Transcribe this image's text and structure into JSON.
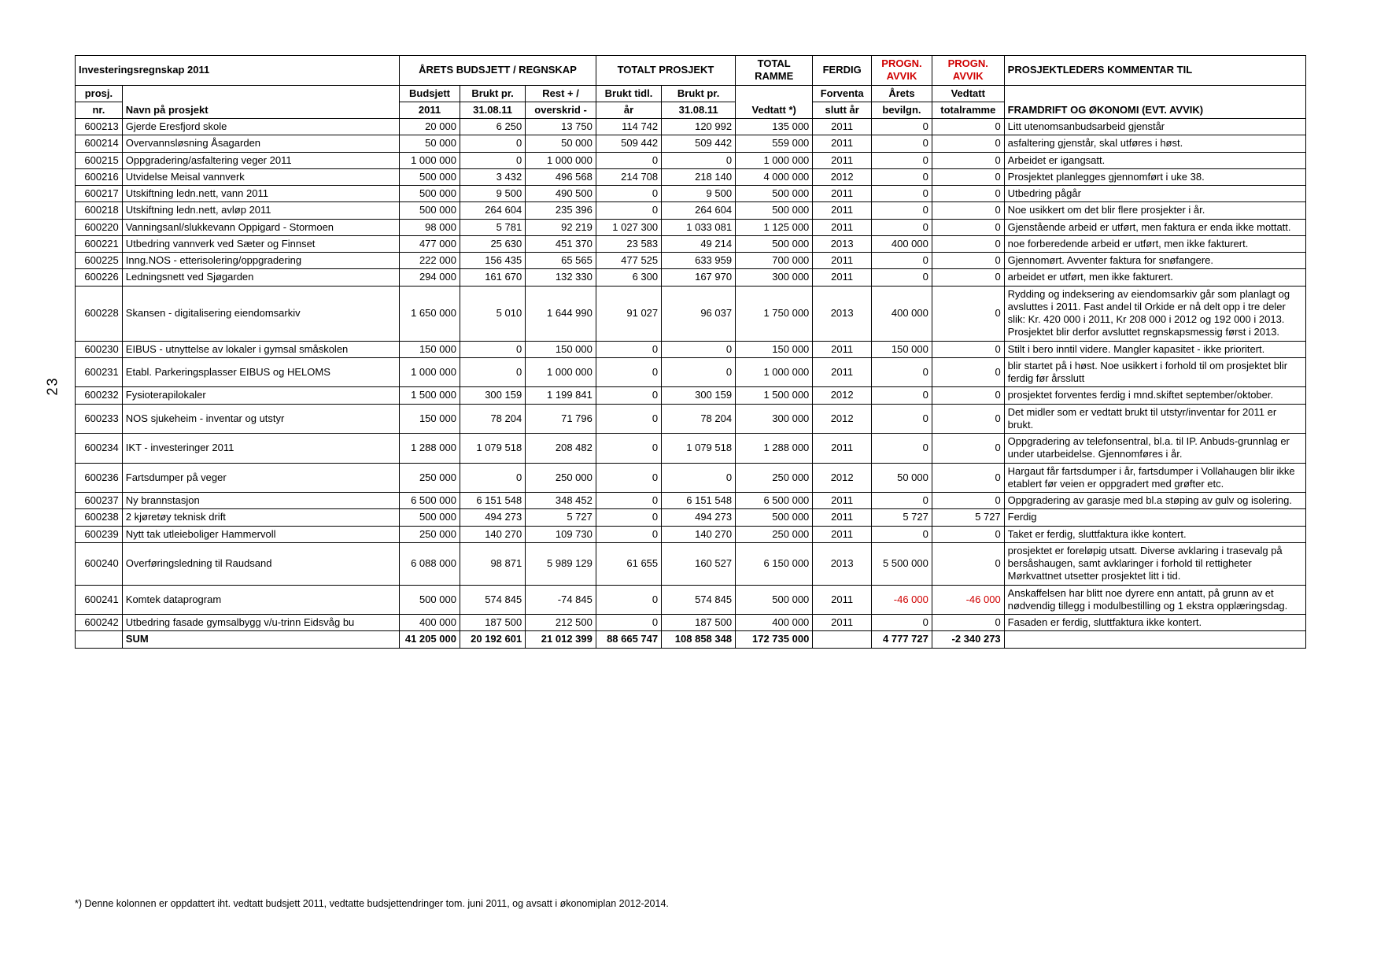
{
  "page_number": "23",
  "title": "Investeringsregnskap 2011",
  "header_groups": {
    "g1": "ÅRETS BUDSJETT / REGNSKAP",
    "g2": "TOTALT PROSJEKT",
    "g3": "TOTAL RAMME",
    "g4": "FERDIG",
    "g5a": "PROGN. AVVIK",
    "g5b": "PROGN. AVVIK",
    "g6": "PROSJEKTLEDERS KOMMENTAR TIL"
  },
  "header_cols": {
    "c0a": "prosj.",
    "c0b": "nr.",
    "c1": "Navn på prosjekt",
    "c2a": "Budsjett",
    "c2b": "2011",
    "c3a": "Brukt pr.",
    "c3b": "31.08.11",
    "c4a": "Rest + /",
    "c4b": "overskrid -",
    "c5a": "Brukt tidl.",
    "c5b": "år",
    "c6a": "Brukt pr.",
    "c6b": "31.08.11",
    "c7": "Vedtatt  *)",
    "c8a": "Forventa",
    "c8b": "slutt år",
    "c9a": "Årets",
    "c9b": "bevilgn.",
    "c10a": "Vedtatt",
    "c10b": "totalramme",
    "c11": "FRAMDRIFT OG ØKONOMI (EVT. AVVIK)"
  },
  "footnote": "*) Denne kolonnen er oppdattert iht. vedtatt budsjett 2011, vedtatte budsjettendringer tom. juni 2011, og avsatt i økonomiplan 2012-2014.",
  "sum_label": "SUM",
  "rows": [
    {
      "nr": "600213",
      "navn": "Gjerde Eresfjord skole",
      "b2011": "20 000",
      "brukt": "6 250",
      "rest": "13 750",
      "tidl": "114 742",
      "bruktpr": "120 992",
      "vedtatt": "135 000",
      "slutt": "2011",
      "avvikA": "0",
      "avvikB": "0",
      "komm": "Litt utenomsanbudsarbeid gjenstår"
    },
    {
      "nr": "600214",
      "navn": "Overvannsløsning Åsagarden",
      "b2011": "50 000",
      "brukt": "0",
      "rest": "50 000",
      "tidl": "509 442",
      "bruktpr": "509 442",
      "vedtatt": "559 000",
      "slutt": "2011",
      "avvikA": "0",
      "avvikB": "0",
      "komm": "asfaltering gjenstår, skal utføres i høst."
    },
    {
      "nr": "600215",
      "navn": "Oppgradering/asfaltering veger 2011",
      "b2011": "1 000 000",
      "brukt": "0",
      "rest": "1 000 000",
      "tidl": "0",
      "bruktpr": "0",
      "vedtatt": "1 000 000",
      "slutt": "2011",
      "avvikA": "0",
      "avvikB": "0",
      "komm": "Arbeidet er igangsatt."
    },
    {
      "nr": "600216",
      "navn": "Utvidelse Meisal vannverk",
      "b2011": "500 000",
      "brukt": "3 432",
      "rest": "496 568",
      "tidl": "214 708",
      "bruktpr": "218 140",
      "vedtatt": "4 000 000",
      "slutt": "2012",
      "avvikA": "0",
      "avvikB": "0",
      "komm": "Prosjektet planlegges gjennomført i uke 38."
    },
    {
      "nr": "600217",
      "navn": "Utskiftning ledn.nett, vann 2011",
      "b2011": "500 000",
      "brukt": "9 500",
      "rest": "490 500",
      "tidl": "0",
      "bruktpr": "9 500",
      "vedtatt": "500 000",
      "slutt": "2011",
      "avvikA": "0",
      "avvikB": "0",
      "komm": "Utbedring pågår"
    },
    {
      "nr": "600218",
      "navn": "Utskiftning ledn.nett, avløp 2011",
      "b2011": "500 000",
      "brukt": "264 604",
      "rest": "235 396",
      "tidl": "0",
      "bruktpr": "264 604",
      "vedtatt": "500 000",
      "slutt": "2011",
      "avvikA": "0",
      "avvikB": "0",
      "komm": "Noe usikkert om det blir flere prosjekter i år."
    },
    {
      "nr": "600220",
      "navn": "Vanningsanl/slukkevann Oppigard - Stormoen",
      "b2011": "98 000",
      "brukt": "5 781",
      "rest": "92 219",
      "tidl": "1 027 300",
      "bruktpr": "1 033 081",
      "vedtatt": "1 125 000",
      "slutt": "2011",
      "avvikA": "0",
      "avvikB": "0",
      "komm": "Gjenstående arbeid er utført, men faktura er enda ikke mottatt."
    },
    {
      "nr": "600221",
      "navn": "Utbedring vannverk ved Sæter og Finnset",
      "b2011": "477 000",
      "brukt": "25 630",
      "rest": "451 370",
      "tidl": "23 583",
      "bruktpr": "49 214",
      "vedtatt": "500 000",
      "slutt": "2013",
      "avvikA": "400 000",
      "avvikB": "0",
      "komm": "noe forberedende arbeid er utført, men ikke fakturert."
    },
    {
      "nr": "600225",
      "navn": "Inng.NOS - etterisolering/oppgradering",
      "b2011": "222 000",
      "brukt": "156 435",
      "rest": "65 565",
      "tidl": "477 525",
      "bruktpr": "633 959",
      "vedtatt": "700 000",
      "slutt": "2011",
      "avvikA": "0",
      "avvikB": "0",
      "komm": "Gjennomørt. Avventer faktura for snøfangere."
    },
    {
      "nr": "600226",
      "navn": "Ledningsnett ved Sjøgarden",
      "b2011": "294 000",
      "brukt": "161 670",
      "rest": "132 330",
      "tidl": "6 300",
      "bruktpr": "167 970",
      "vedtatt": "300 000",
      "slutt": "2011",
      "avvikA": "0",
      "avvikB": "0",
      "komm": "arbeidet er utført, men ikke fakturert."
    },
    {
      "nr": "600228",
      "navn": "Skansen - digitalisering eiendomsarkiv",
      "b2011": "1 650 000",
      "brukt": "5 010",
      "rest": "1 644 990",
      "tidl": "91 027",
      "bruktpr": "96 037",
      "vedtatt": "1 750 000",
      "slutt": "2013",
      "avvikA": "400 000",
      "avvikB": "0",
      "komm": "Rydding og indeksering av eiendomsarkiv går som planlagt og avsluttes i 2011. Fast andel til Orkide er nå delt opp i tre deler slik: Kr. 420 000 i 2011, Kr 208 000 i 2012 og 192 000 i 2013. Prosjektet blir derfor avsluttet regnskapsmessig først i 2013."
    },
    {
      "nr": "600230",
      "navn": "EIBUS - utnyttelse av lokaler i gymsal småskolen",
      "b2011": "150 000",
      "brukt": "0",
      "rest": "150 000",
      "tidl": "0",
      "bruktpr": "0",
      "vedtatt": "150 000",
      "slutt": "2011",
      "avvikA": "150 000",
      "avvikB": "0",
      "komm": "Stilt i bero inntil videre. Mangler kapasitet - ikke prioritert."
    },
    {
      "nr": "600231",
      "navn": "Etabl. Parkeringsplasser EIBUS og HELOMS",
      "b2011": "1 000 000",
      "brukt": "0",
      "rest": "1 000 000",
      "tidl": "0",
      "bruktpr": "0",
      "vedtatt": "1 000 000",
      "slutt": "2011",
      "avvikA": "0",
      "avvikB": "0",
      "komm": "blir startet på i høst. Noe usikkert i forhold til om prosjektet blir ferdig før årsslutt"
    },
    {
      "nr": "600232",
      "navn": "Fysioterapilokaler",
      "b2011": "1 500 000",
      "brukt": "300 159",
      "rest": "1 199 841",
      "tidl": "0",
      "bruktpr": "300 159",
      "vedtatt": "1 500 000",
      "slutt": "2012",
      "avvikA": "0",
      "avvikB": "0",
      "komm": "prosjektet forventes ferdig i mnd.skiftet september/oktober."
    },
    {
      "nr": "600233",
      "navn": "NOS sjukeheim - inventar og utstyr",
      "b2011": "150 000",
      "brukt": "78 204",
      "rest": "71 796",
      "tidl": "0",
      "bruktpr": "78 204",
      "vedtatt": "300 000",
      "slutt": "2012",
      "avvikA": "0",
      "avvikB": "0",
      "komm": "Det midler som er vedtatt brukt  til utstyr/inventar for 2011 er  brukt."
    },
    {
      "nr": "600234",
      "navn": "IKT - investeringer 2011",
      "b2011": "1 288 000",
      "brukt": "1 079 518",
      "rest": "208 482",
      "tidl": "0",
      "bruktpr": "1 079 518",
      "vedtatt": "1 288 000",
      "slutt": "2011",
      "avvikA": "0",
      "avvikB": "0",
      "komm": "Oppgradering av telefonsentral, bl.a. til IP. Anbuds-grunnlag er under utarbeidelse. Gjennomføres i år."
    },
    {
      "nr": "600236",
      "navn": "Fartsdumper på veger",
      "b2011": "250 000",
      "brukt": "0",
      "rest": "250 000",
      "tidl": "0",
      "bruktpr": "0",
      "vedtatt": "250 000",
      "slutt": "2012",
      "avvikA": "50 000",
      "avvikB": "0",
      "komm": "Hargaut får fartsdumper i år, fartsdumper i Vollahaugen blir ikke etablert før veien er oppgradert med grøfter etc."
    },
    {
      "nr": "600237",
      "navn": "Ny brannstasjon",
      "b2011": "6 500 000",
      "brukt": "6 151 548",
      "rest": "348 452",
      "tidl": "0",
      "bruktpr": "6 151 548",
      "vedtatt": "6 500 000",
      "slutt": "2011",
      "avvikA": "0",
      "avvikB": "0",
      "komm": "Oppgradering av garasje med bl.a støping av gulv og isolering."
    },
    {
      "nr": "600238",
      "navn": "2 kjøretøy teknisk drift",
      "b2011": "500 000",
      "brukt": "494 273",
      "rest": "5 727",
      "tidl": "0",
      "bruktpr": "494 273",
      "vedtatt": "500 000",
      "slutt": "2011",
      "avvikA": "5 727",
      "avvikB": "5 727",
      "komm": "Ferdig"
    },
    {
      "nr": "600239",
      "navn": "Nytt tak utleieboliger Hammervoll",
      "b2011": "250 000",
      "brukt": "140 270",
      "rest": "109 730",
      "tidl": "0",
      "bruktpr": "140 270",
      "vedtatt": "250 000",
      "slutt": "2011",
      "avvikA": "0",
      "avvikB": "0",
      "komm": "Taket er ferdig, sluttfaktura ikke kontert."
    },
    {
      "nr": "600240",
      "navn": "Overføringsledning til Raudsand",
      "b2011": "6 088 000",
      "brukt": "98 871",
      "rest": "5 989 129",
      "tidl": "61 655",
      "bruktpr": "160 527",
      "vedtatt": "6 150 000",
      "slutt": "2013",
      "avvikA": "5 500 000",
      "avvikB": "0",
      "komm": "prosjektet er foreløpig utsatt. Diverse avklaring i trasevalg på bersåshaugen, samt avklaringer i forhold til rettigheter Mørkvattnet utsetter prosjektet litt i tid."
    },
    {
      "nr": "600241",
      "navn": "Komtek dataprogram",
      "b2011": "500 000",
      "brukt": "574 845",
      "rest": "-74 845",
      "tidl": "0",
      "bruktpr": "574 845",
      "vedtatt": "500 000",
      "slutt": "2011",
      "avvikA": "-46 000",
      "avvikB": "-46 000",
      "komm": "Anskaffelsen har blitt noe dyrere enn antatt, på grunn av et nødvendig tillegg i modulbestilling og 1 ekstra opplæringsdag.",
      "redA": true,
      "redB": true
    },
    {
      "nr": "600242",
      "navn": "Utbedring fasade gymsalbygg v/u-trinn Eidsvåg bu",
      "b2011": "400 000",
      "brukt": "187 500",
      "rest": "212 500",
      "tidl": "0",
      "bruktpr": "187 500",
      "vedtatt": "400 000",
      "slutt": "2011",
      "avvikA": "0",
      "avvikB": "0",
      "komm": "Fasaden er ferdig, sluttfaktura ikke kontert."
    }
  ],
  "sum": {
    "b2011": "41 205 000",
    "brukt": "20 192 601",
    "rest": "21 012 399",
    "tidl": "88 665 747",
    "bruktpr": "108 858 348",
    "vedtatt": "172 735 000",
    "slutt": "",
    "avvikA": "4 777 727",
    "avvikB": "-2 340 273"
  },
  "colors": {
    "red": "#d00000",
    "black": "#000000"
  }
}
